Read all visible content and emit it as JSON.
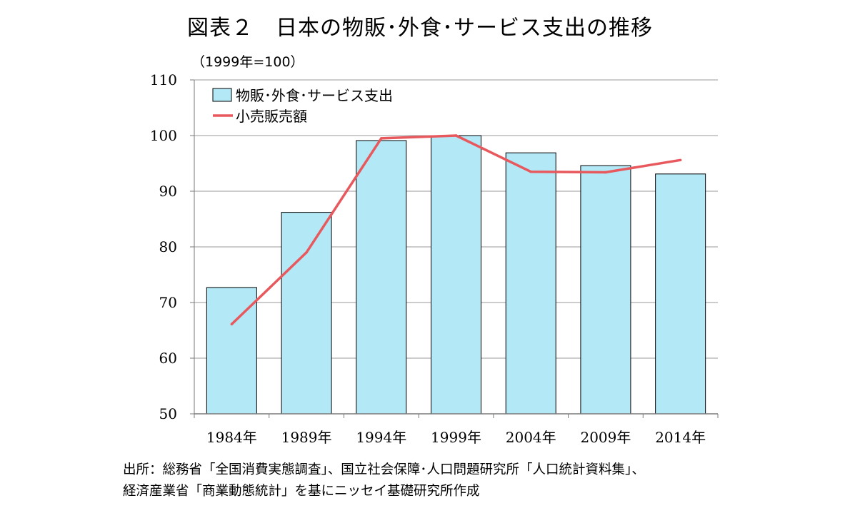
{
  "title": "図表２　日本の物販･外食･サービス支出の推移",
  "unit_note": "（1999年=100）",
  "source_lines": [
    "出所：総務省「全国消費実態調査」、国立社会保障･人口問題研究所「人口統計資料集」、",
    "経済産業省「商業動態統計」を基にニッセイ基礎研究所作成"
  ],
  "colors": {
    "bar_fill": "#b3e8f6",
    "bar_stroke": "#000000",
    "line": "#e8595e",
    "grid": "#9a9a9a"
  },
  "chart_data": {
    "type": "bar",
    "categories": [
      "1984年",
      "1989年",
      "1994年",
      "1999年",
      "2004年",
      "2009年",
      "2014年"
    ],
    "series": [
      {
        "name": "物販･外食･サービス支出",
        "type": "bar",
        "values": [
          72.7,
          86.2,
          99.1,
          100.0,
          96.9,
          94.6,
          93.1
        ]
      },
      {
        "name": "小売販売額",
        "type": "line",
        "values": [
          66.1,
          79.0,
          99.5,
          100.0,
          93.5,
          93.4,
          95.6
        ]
      }
    ],
    "ylim": [
      50,
      110
    ],
    "yticks": [
      50,
      60,
      70,
      80,
      90,
      100,
      110
    ],
    "grid": true,
    "legend_position": "top-left"
  }
}
